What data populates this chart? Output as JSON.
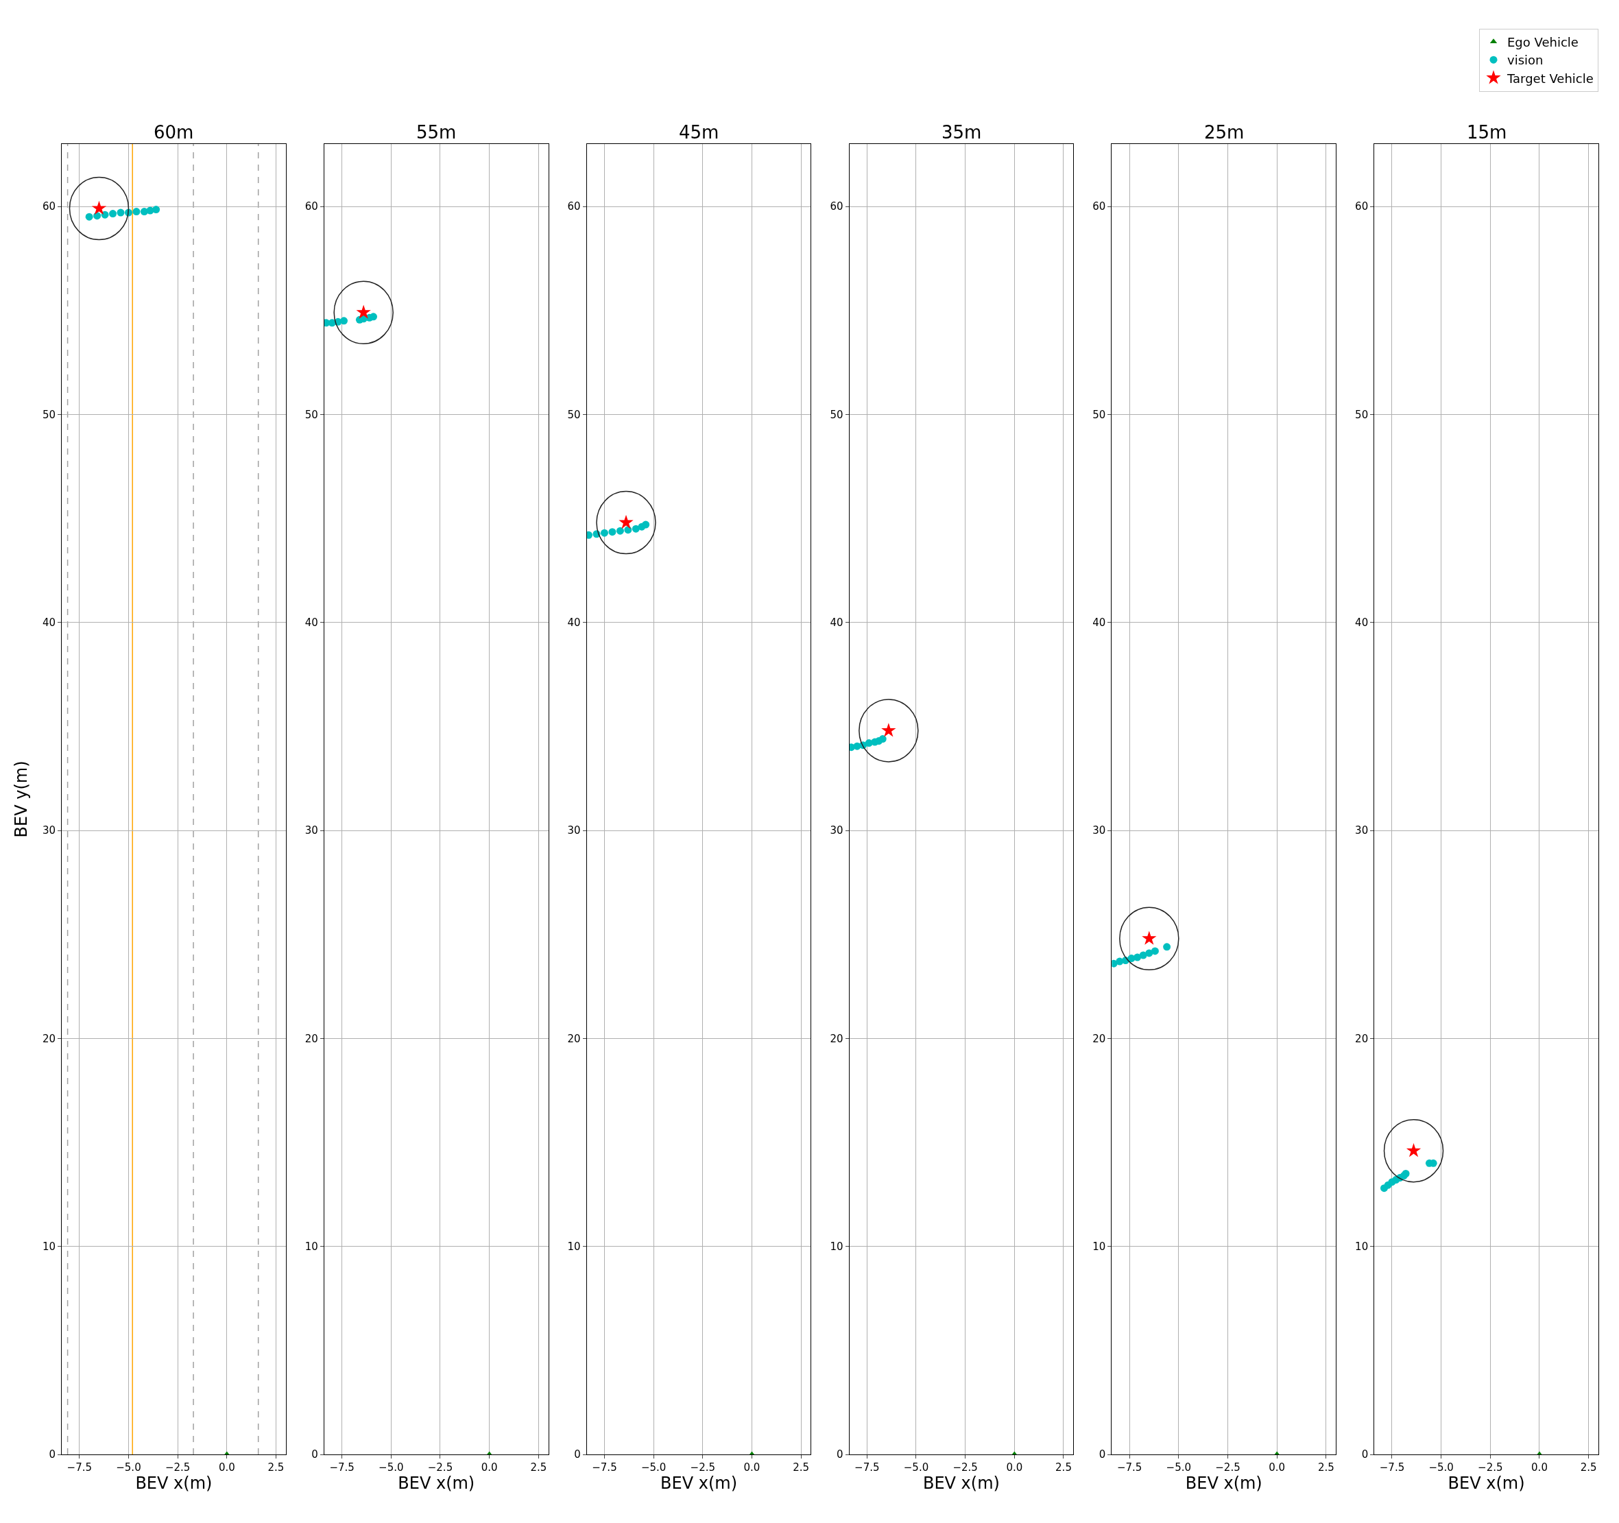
{
  "chart_data": [
    {
      "type": "scatter",
      "title": "60m",
      "xlabel": "BEV x(m)",
      "ylabel": "BEV y(m)",
      "legend": "top right",
      "xlim": [
        -8.4,
        3.0
      ],
      "ylim": [
        0,
        63
      ],
      "xticks": [
        {
          "value": -7.5,
          "label": "−7.5"
        },
        {
          "value": -5.0,
          "label": "−5.0"
        },
        {
          "value": -2.5,
          "label": "−2.5"
        },
        {
          "value": 0.0,
          "label": "0.0"
        },
        {
          "value": 2.5,
          "label": "2.5"
        }
      ],
      "yticks": [
        0,
        10,
        20,
        30,
        40,
        50,
        60
      ],
      "grid": true,
      "ref_lines": [
        {
          "axis": "x",
          "value": -8.1,
          "color": "#a0a0a0",
          "line_style": "dashed"
        },
        {
          "axis": "x",
          "value": -1.7,
          "color": "#a0a0a0",
          "line_style": "dashed"
        },
        {
          "axis": "x",
          "value": 1.6,
          "color": "#a0a0a0",
          "line_style": "dashed"
        },
        {
          "axis": "x",
          "value": -4.8,
          "color": "#ffa500",
          "line_style": "solid"
        }
      ],
      "series": [
        {
          "name": "Ego Vehicle",
          "color": "#008000",
          "marker": "triangle",
          "x": [
            0.0
          ],
          "values": [
            0.0
          ]
        },
        {
          "name": "vision",
          "color": "#00bfbf",
          "marker": "circle",
          "x": [
            -7.0,
            -6.6,
            -6.2,
            -5.8,
            -5.4,
            -5.0,
            -4.6,
            -4.2,
            -3.9,
            -3.6
          ],
          "values": [
            59.5,
            59.55,
            59.6,
            59.65,
            59.7,
            59.7,
            59.75,
            59.75,
            59.8,
            59.85
          ]
        },
        {
          "name": "Target Vehicle",
          "color": "#ff0000",
          "marker": "star",
          "x": [
            -6.5
          ],
          "values": [
            59.9
          ]
        }
      ]
    },
    {
      "type": "scatter",
      "title": "55m",
      "xlabel": "BEV x(m)",
      "xlim": [
        -8.4,
        3.0
      ],
      "ylim": [
        0,
        63
      ],
      "xticks": [
        {
          "value": -7.5,
          "label": "−7.5"
        },
        {
          "value": -5.0,
          "label": "−5.0"
        },
        {
          "value": -2.5,
          "label": "−2.5"
        },
        {
          "value": 0.0,
          "label": "0.0"
        },
        {
          "value": 2.5,
          "label": "2.5"
        }
      ],
      "yticks": [
        0,
        10,
        20,
        30,
        40,
        50,
        60
      ],
      "grid": true,
      "series": [
        {
          "color": "#008000",
          "marker": "triangle",
          "x": [
            0.0
          ],
          "values": [
            0.0
          ]
        },
        {
          "color": "#00bfbf",
          "marker": "circle",
          "x": [
            -8.3,
            -8.0,
            -7.7,
            -7.4,
            -6.6,
            -6.4,
            -6.1,
            -5.9
          ],
          "values": [
            54.4,
            54.4,
            54.45,
            54.5,
            54.55,
            54.6,
            54.65,
            54.7
          ]
        },
        {
          "color": "#ff0000",
          "marker": "star",
          "x": [
            -6.4
          ],
          "values": [
            54.9
          ]
        }
      ]
    },
    {
      "type": "scatter",
      "title": "45m",
      "xlabel": "BEV x(m)",
      "xlim": [
        -8.4,
        3.0
      ],
      "ylim": [
        0,
        63
      ],
      "xticks": [
        {
          "value": -7.5,
          "label": "−7.5"
        },
        {
          "value": -5.0,
          "label": "−5.0"
        },
        {
          "value": -2.5,
          "label": "−2.5"
        },
        {
          "value": 0.0,
          "label": "0.0"
        },
        {
          "value": 2.5,
          "label": "2.5"
        }
      ],
      "yticks": [
        0,
        10,
        20,
        30,
        40,
        50,
        60
      ],
      "grid": true,
      "series": [
        {
          "color": "#008000",
          "marker": "triangle",
          "x": [
            0.0
          ],
          "values": [
            0.0
          ]
        },
        {
          "color": "#00bfbf",
          "marker": "circle",
          "x": [
            -8.3,
            -7.9,
            -7.5,
            -7.1,
            -6.7,
            -6.3,
            -5.9,
            -5.6,
            -5.4
          ],
          "values": [
            44.2,
            44.25,
            44.3,
            44.35,
            44.4,
            44.45,
            44.5,
            44.6,
            44.7
          ]
        },
        {
          "color": "#ff0000",
          "marker": "star",
          "x": [
            -6.4
          ],
          "values": [
            44.8
          ]
        }
      ]
    },
    {
      "type": "scatter",
      "title": "35m",
      "xlabel": "BEV x(m)",
      "xlim": [
        -8.4,
        3.0
      ],
      "ylim": [
        0,
        63
      ],
      "xticks": [
        {
          "value": -7.5,
          "label": "−7.5"
        },
        {
          "value": -5.0,
          "label": "−5.0"
        },
        {
          "value": -2.5,
          "label": "−2.5"
        },
        {
          "value": 0.0,
          "label": "0.0"
        },
        {
          "value": 2.5,
          "label": "2.5"
        }
      ],
      "yticks": [
        0,
        10,
        20,
        30,
        40,
        50,
        60
      ],
      "grid": true,
      "series": [
        {
          "color": "#008000",
          "marker": "triangle",
          "x": [
            0.0
          ],
          "values": [
            0.0
          ]
        },
        {
          "color": "#00bfbf",
          "marker": "circle",
          "x": [
            -8.3,
            -8.0,
            -7.7,
            -7.4,
            -7.1,
            -6.9,
            -6.7
          ],
          "values": [
            34.0,
            34.05,
            34.1,
            34.2,
            34.25,
            34.3,
            34.4
          ]
        },
        {
          "color": "#ff0000",
          "marker": "star",
          "x": [
            -6.4
          ],
          "values": [
            34.8
          ]
        }
      ]
    },
    {
      "type": "scatter",
      "title": "25m",
      "xlabel": "BEV x(m)",
      "xlim": [
        -8.4,
        3.0
      ],
      "ylim": [
        0,
        63
      ],
      "xticks": [
        {
          "value": -7.5,
          "label": "−7.5"
        },
        {
          "value": -5.0,
          "label": "−5.0"
        },
        {
          "value": -2.5,
          "label": "−2.5"
        },
        {
          "value": 0.0,
          "label": "0.0"
        },
        {
          "value": 2.5,
          "label": "2.5"
        }
      ],
      "yticks": [
        0,
        10,
        20,
        30,
        40,
        50,
        60
      ],
      "grid": true,
      "series": [
        {
          "color": "#008000",
          "marker": "triangle",
          "x": [
            0.0
          ],
          "values": [
            0.0
          ]
        },
        {
          "color": "#00bfbf",
          "marker": "circle",
          "x": [
            -8.3,
            -8.0,
            -7.7,
            -7.4,
            -7.1,
            -6.8,
            -6.5,
            -6.2,
            -5.6
          ],
          "values": [
            23.6,
            23.7,
            23.75,
            23.85,
            23.9,
            24.0,
            24.1,
            24.2,
            24.4
          ]
        },
        {
          "color": "#ff0000",
          "marker": "star",
          "x": [
            -6.5
          ],
          "values": [
            24.8
          ]
        }
      ]
    },
    {
      "type": "scatter",
      "title": "15m",
      "xlabel": "BEV x(m)",
      "xlim": [
        -8.4,
        3.0
      ],
      "ylim": [
        0,
        63
      ],
      "xticks": [
        {
          "value": -7.5,
          "label": "−7.5"
        },
        {
          "value": -5.0,
          "label": "−5.0"
        },
        {
          "value": -2.5,
          "label": "−2.5"
        },
        {
          "value": 0.0,
          "label": "0.0"
        },
        {
          "value": 2.5,
          "label": "2.5"
        }
      ],
      "yticks": [
        0,
        10,
        20,
        30,
        40,
        50,
        60
      ],
      "grid": true,
      "series": [
        {
          "color": "#008000",
          "marker": "triangle",
          "x": [
            0.0
          ],
          "values": [
            0.0
          ]
        },
        {
          "color": "#00bfbf",
          "marker": "circle",
          "x": [
            -7.9,
            -7.7,
            -7.5,
            -7.3,
            -7.1,
            -6.9,
            -6.8,
            -5.6,
            -5.4
          ],
          "values": [
            12.8,
            12.95,
            13.1,
            13.2,
            13.3,
            13.4,
            13.5,
            14.0,
            14.0
          ]
        },
        {
          "color": "#ff0000",
          "marker": "star",
          "x": [
            -6.4
          ],
          "values": [
            14.6
          ]
        }
      ]
    }
  ]
}
